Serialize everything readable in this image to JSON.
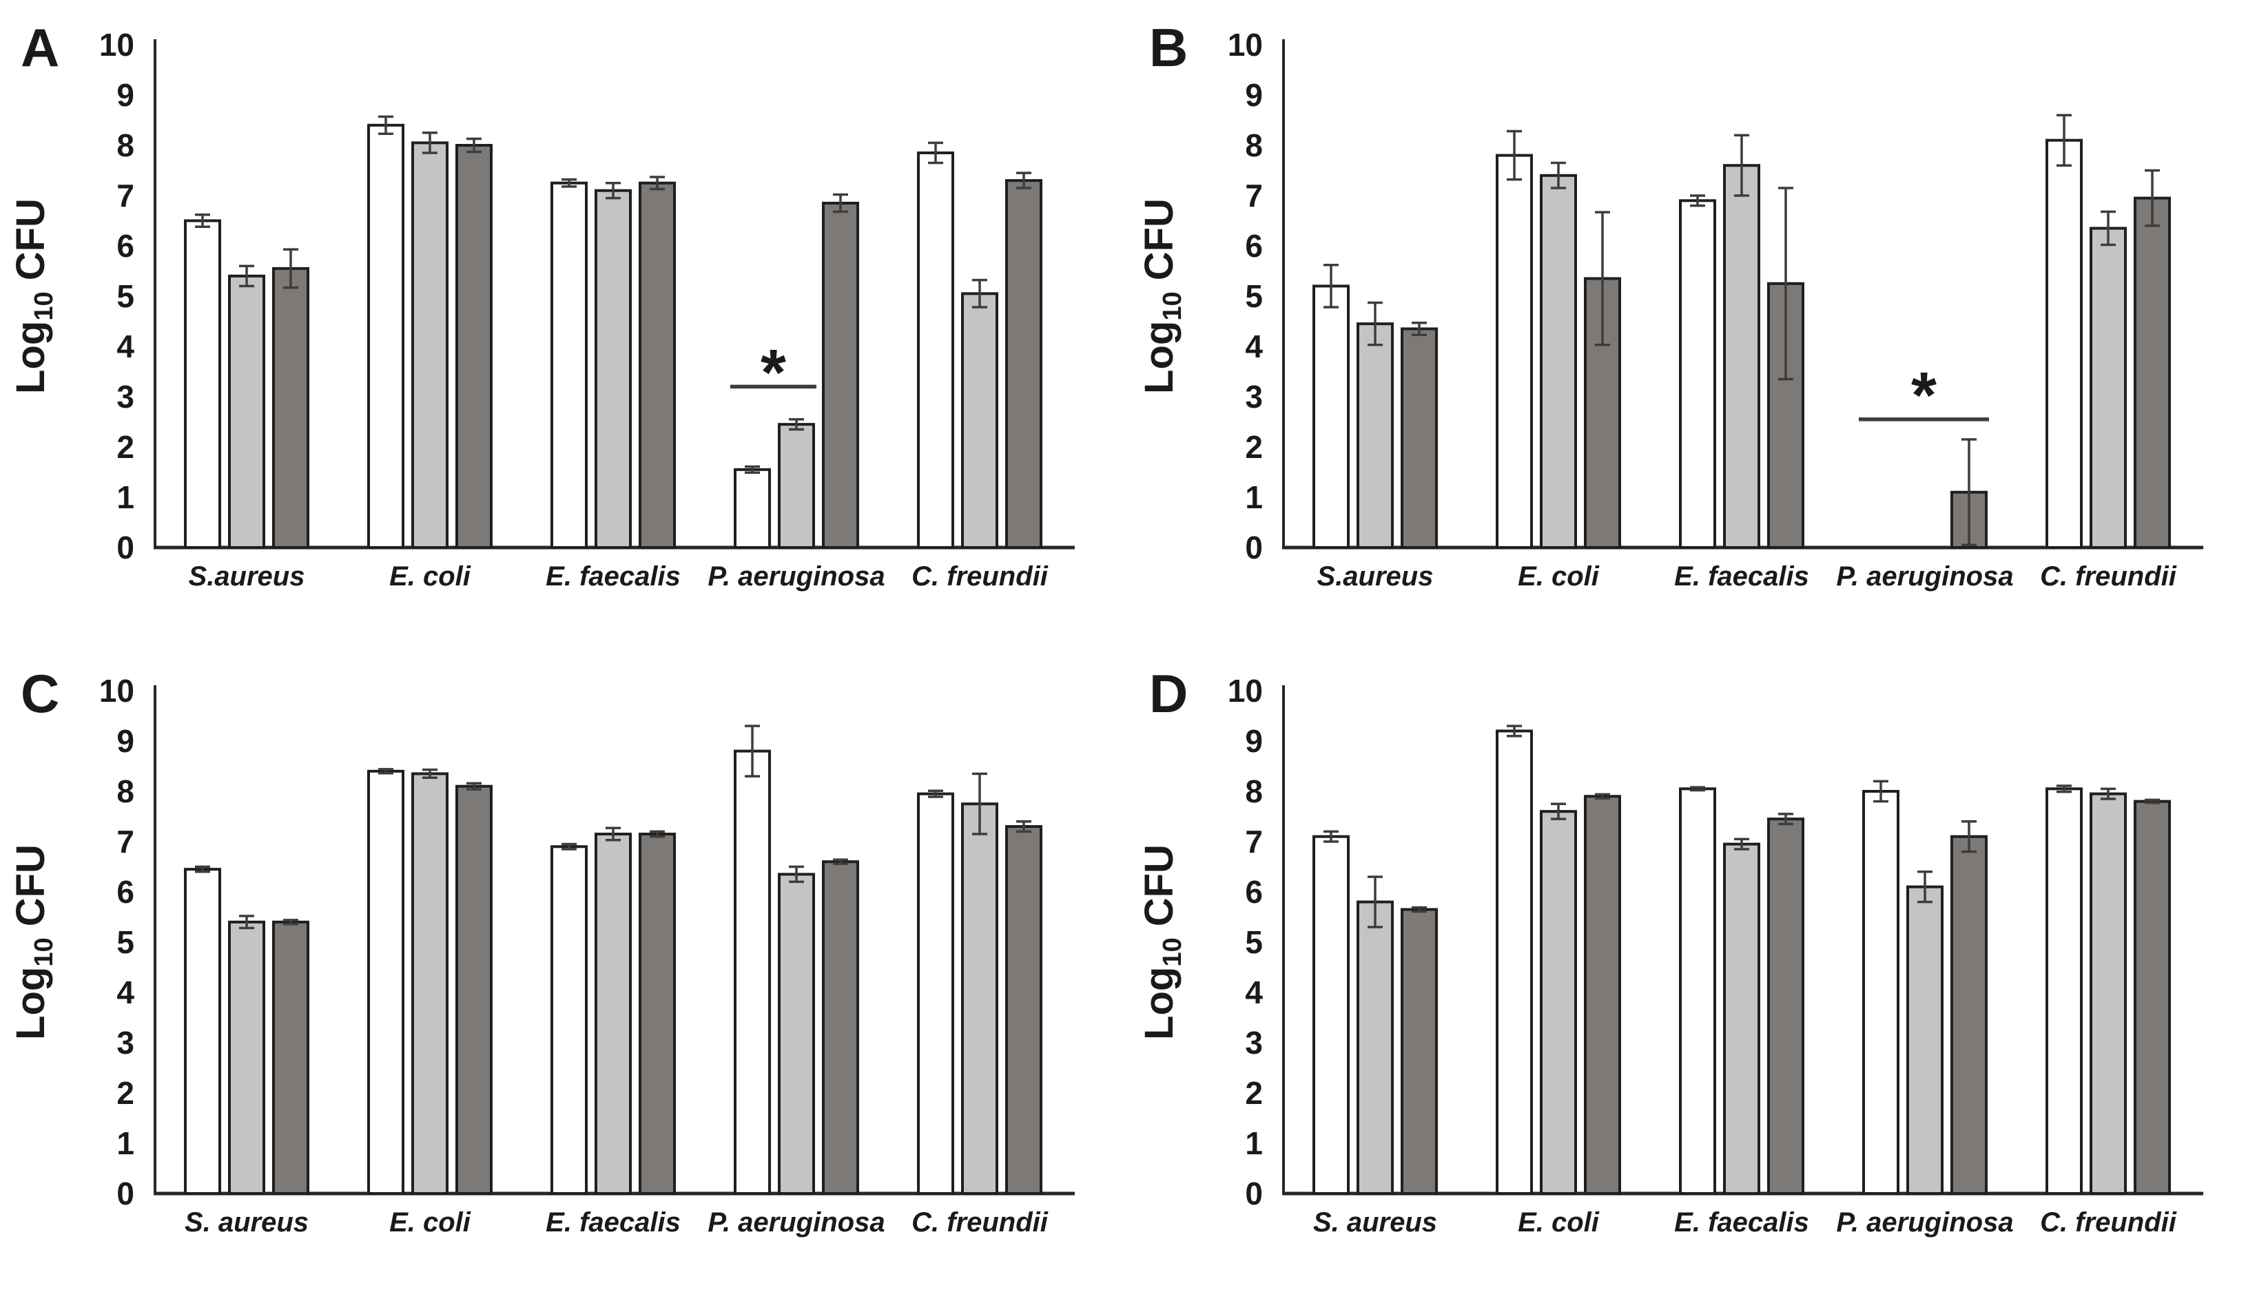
{
  "figure": {
    "ylabel_prefix": "Log",
    "ylabel_subscript": "10",
    "ylabel_suffix": " CFU",
    "colors": {
      "bar_fill_white": "#ffffff",
      "bar_fill_light_gray": "#c4c4c4",
      "bar_fill_dark_gray": "#7d7977",
      "bar_stroke": "#1f1f1f",
      "axis": "#262626",
      "error_bar": "#3d3d3d",
      "significance": "#3d3d3d",
      "text": "#1a1a1a"
    }
  },
  "chart_data": [
    {
      "type": "bar",
      "panel_letter": "A",
      "ylabel": "Log10 CFU",
      "ylim": [
        0,
        10
      ],
      "yticks": [
        0,
        1,
        2,
        3,
        4,
        5,
        6,
        7,
        8,
        9,
        10
      ],
      "categories": [
        "S.aureus",
        "E. coli",
        "E. faecalis",
        "P. aeruginosa",
        "C. freundii"
      ],
      "series": [
        {
          "name": "white",
          "values": [
            6.5,
            8.4,
            7.25,
            1.55,
            7.85
          ],
          "errors": [
            0.12,
            0.17,
            0.07,
            0.06,
            0.2
          ]
        },
        {
          "name": "light-gray",
          "values": [
            5.4,
            8.05,
            7.1,
            2.45,
            5.05
          ],
          "errors": [
            0.2,
            0.2,
            0.15,
            0.1,
            0.27
          ]
        },
        {
          "name": "dark-gray",
          "values": [
            5.55,
            8.0,
            7.25,
            6.85,
            7.3
          ],
          "errors": [
            0.38,
            0.13,
            0.12,
            0.17,
            0.15
          ]
        }
      ],
      "significance": {
        "label": "*",
        "category_index": 3,
        "span_bars": [
          0,
          1
        ],
        "line_y": 3.2,
        "label_y": 3.7
      }
    },
    {
      "type": "bar",
      "panel_letter": "B",
      "ylabel": "Log10 CFU",
      "ylim": [
        0,
        10
      ],
      "yticks": [
        0,
        1,
        2,
        3,
        4,
        5,
        6,
        7,
        8,
        9,
        10
      ],
      "categories": [
        "S.aureus",
        "E. coli",
        "E. faecalis",
        "P. aeruginosa",
        "C. freundii"
      ],
      "series": [
        {
          "name": "white",
          "values": [
            5.2,
            7.8,
            6.9,
            0,
            8.1
          ],
          "errors": [
            0.42,
            0.48,
            0.1,
            0,
            0.5
          ]
        },
        {
          "name": "light-gray",
          "values": [
            4.45,
            7.4,
            7.6,
            0,
            6.35
          ],
          "errors": [
            0.42,
            0.25,
            0.6,
            0,
            0.33
          ]
        },
        {
          "name": "dark-gray",
          "values": [
            4.35,
            5.35,
            5.25,
            1.1,
            6.95
          ],
          "errors": [
            0.12,
            1.32,
            1.9,
            1.05,
            0.55
          ]
        }
      ],
      "significance": {
        "label": "*",
        "category_index": 3,
        "span_bars": [
          0,
          2
        ],
        "line_y": 2.55,
        "label_y": 3.25
      }
    },
    {
      "type": "bar",
      "panel_letter": "C",
      "ylabel": "Log10 CFU",
      "ylim": [
        0,
        10
      ],
      "yticks": [
        0,
        1,
        2,
        3,
        4,
        5,
        6,
        7,
        8,
        9,
        10
      ],
      "categories": [
        "S. aureus",
        "E. coli",
        "E. faecalis",
        "P. aeruginosa",
        "C. freundii"
      ],
      "series": [
        {
          "name": "white",
          "values": [
            6.45,
            8.4,
            6.9,
            8.8,
            7.95
          ],
          "errors": [
            0.05,
            0.04,
            0.05,
            0.5,
            0.06
          ]
        },
        {
          "name": "light-gray",
          "values": [
            5.4,
            8.35,
            7.15,
            6.35,
            7.75
          ],
          "errors": [
            0.12,
            0.08,
            0.12,
            0.15,
            0.6
          ]
        },
        {
          "name": "dark-gray",
          "values": [
            5.4,
            8.1,
            7.15,
            6.6,
            7.3
          ],
          "errors": [
            0.04,
            0.06,
            0.05,
            0.04,
            0.1
          ]
        }
      ],
      "significance": null
    },
    {
      "type": "bar",
      "panel_letter": "D",
      "ylabel": "Log10 CFU",
      "ylim": [
        0,
        10
      ],
      "yticks": [
        0,
        1,
        2,
        3,
        4,
        5,
        6,
        7,
        8,
        9,
        10
      ],
      "categories": [
        "S. aureus",
        "E. coli",
        "E. faecalis",
        "P. aeruginosa",
        "C. freundii"
      ],
      "series": [
        {
          "name": "white",
          "values": [
            7.1,
            9.2,
            8.05,
            8.0,
            8.05
          ],
          "errors": [
            0.1,
            0.1,
            0.03,
            0.2,
            0.06
          ]
        },
        {
          "name": "light-gray",
          "values": [
            5.8,
            7.6,
            6.95,
            6.1,
            7.95
          ],
          "errors": [
            0.5,
            0.15,
            0.1,
            0.3,
            0.1
          ]
        },
        {
          "name": "dark-gray",
          "values": [
            5.65,
            7.9,
            7.45,
            7.1,
            7.8
          ],
          "errors": [
            0.04,
            0.04,
            0.1,
            0.3,
            0.03
          ]
        }
      ],
      "significance": null
    }
  ]
}
